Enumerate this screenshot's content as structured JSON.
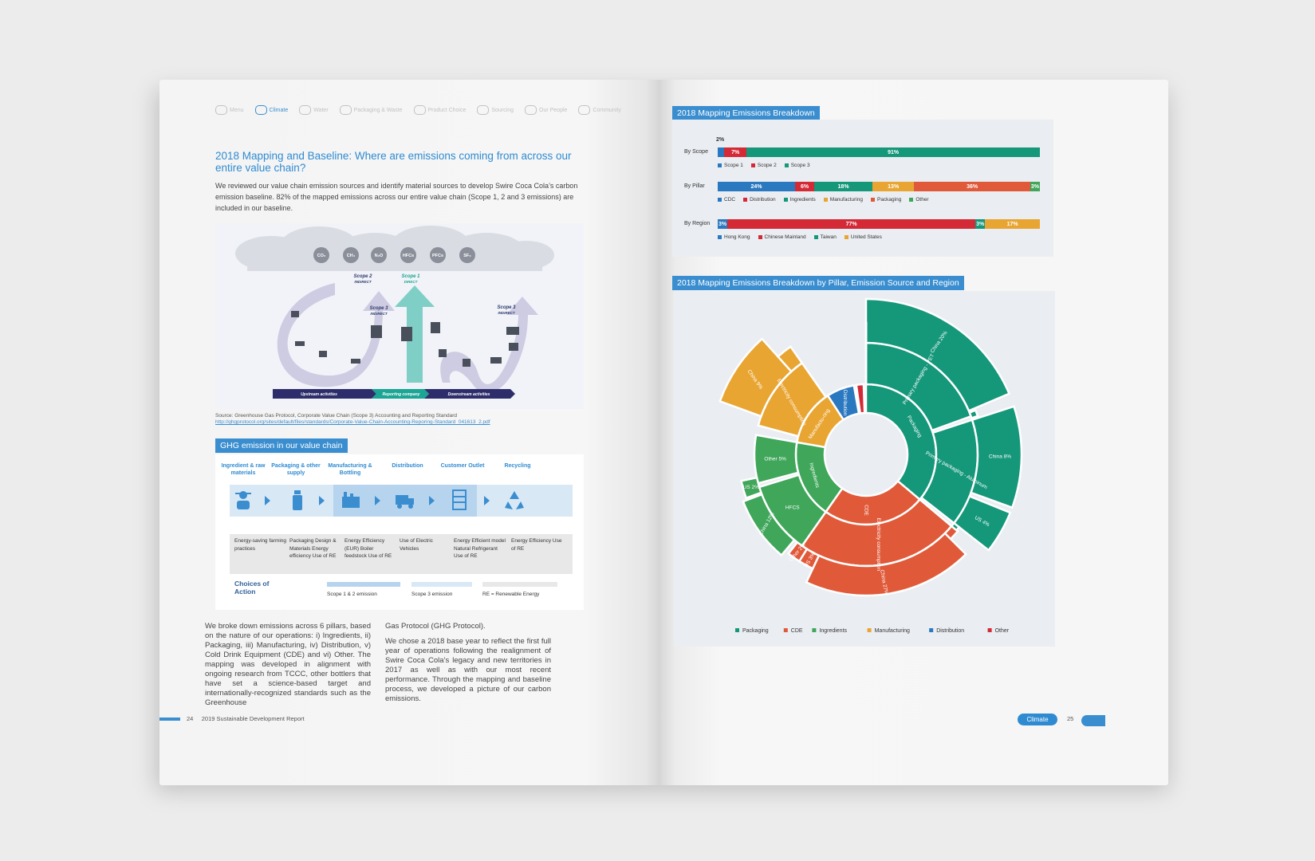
{
  "nav": [
    "Menu",
    "Climate",
    "Water",
    "Packaging & Waste",
    "Product Choice",
    "Sourcing",
    "Our People",
    "Community"
  ],
  "left": {
    "heading": "2018 Mapping and Baseline:  Where are emissions coming from across our entire value chain?",
    "intro": "We reviewed our value chain emission sources and identify material sources to develop Swire Coca Cola’s carbon emission baseline. 82% of the mapped emissions across our entire value chain (Scope 1, 2 and 3 emissions) are included in our baseline.",
    "diagram": {
      "gases": [
        "CO₂",
        "CH₄",
        "N₂O",
        "HFCs",
        "PFCs",
        "SF₆"
      ],
      "scope2": {
        "title": "Scope 2",
        "sub": "INDIRECT"
      },
      "scope1": {
        "title": "Scope 1",
        "sub": "DIRECT"
      },
      "scope3a": {
        "title": "Scope 3",
        "sub": "INDIRECT"
      },
      "scope3b": {
        "title": "Scope 3",
        "sub": "INDIRECT"
      },
      "activities": [
        "Upstream activities",
        "Reporting company",
        "Downstream activities"
      ]
    },
    "source": "Source: Greenhouse Gas Protocol, Corporate Value Chain (Scope 3) Accounting and Reporting Standard",
    "source_link": "http://ghgprotocol.org/sites/default/files/standards/Corporate-Value-Chain-Accounting-Reporing-Standard_041613_2.pdf",
    "ghg_label": "GHG emission in our value chain",
    "stages": [
      {
        "title": "Ingredient & raw materials",
        "action": "Energy-saving farming practices"
      },
      {
        "title": "Packaging & other supply",
        "action": "Packaging Design & Materials Energy efficiency Use of RE"
      },
      {
        "title": "Manufacturing & Bottling",
        "action": "Energy Efficiency (EUR) Boiler feedstock Use of RE"
      },
      {
        "title": "Distribution",
        "action": "Use of Electric Vehicles"
      },
      {
        "title": "Customer Outlet",
        "action": "Energy Efficient model Natural Refrigerant Use of RE"
      },
      {
        "title": "Recycling",
        "action": "Energy Efficiency Use of RE"
      }
    ],
    "choices": "Choices of Action",
    "legend": [
      "Scope 1 & 2 emission",
      "Scope 3 emission",
      "RE = Renewable Energy"
    ],
    "col1": "We broke down emissions across 6 pillars, based on the nature of our operations: i) Ingredients, ii) Packaging, iii) Manufacturing, iv) Distribution, v) Cold Drink Equipment (CDE) and vi) Other. The mapping was developed in alignment with ongoing research from TCCC, other bottlers that have set a science-based target and internationally-recognized standards such as the Greenhouse",
    "col2a": "Gas Protocol (GHG Protocol).",
    "col2b": "We chose a 2018 base year to reflect the first full year of operations following the realignment of Swire Coca Cola’s legacy and new territories in 2017 as well as with our most recent performance. Through the mapping and baseline process, we developed a picture of our carbon emissions.",
    "page_no": "24",
    "footer": "2019 Sustainable Development Report"
  },
  "right": {
    "page_no": "25",
    "pill": "Climate",
    "chart1_title": "2018 Mapping Emissions Breakdown",
    "chart2_title": "2018 Mapping Emissions Breakdown by Pillar, Emission Source and Region"
  },
  "colors": {
    "blue": "#2a78c0",
    "red": "#d32a36",
    "teal": "#15977a",
    "green": "#3fa65a",
    "orange": "#e9a532",
    "coral": "#e05a3a",
    "lightgreen": "#5cb85c"
  },
  "chart_data": [
    {
      "type": "bar",
      "title": "2018 Mapping Emissions Breakdown",
      "rows": [
        {
          "label": "By Scope",
          "segments": [
            {
              "name": "Scope 1",
              "value": 2,
              "color": "#2a78c0",
              "text": "2%"
            },
            {
              "name": "Scope 2",
              "value": 7,
              "color": "#d32a36",
              "text": "7%"
            },
            {
              "name": "Scope 3",
              "value": 91,
              "color": "#15977a",
              "text": "91%"
            }
          ]
        },
        {
          "label": "By Pillar",
          "segments": [
            {
              "name": "CDC",
              "value": 24,
              "color": "#2a78c0",
              "text": "24%"
            },
            {
              "name": "Distribution",
              "value": 6,
              "color": "#d32a36",
              "text": "6%"
            },
            {
              "name": "Ingredients",
              "value": 18,
              "color": "#15977a",
              "text": "18%"
            },
            {
              "name": "Manufacturing",
              "value": 13,
              "color": "#e9a532",
              "text": "13%"
            },
            {
              "name": "Packaging",
              "value": 36,
              "color": "#e05a3a",
              "text": "36%"
            },
            {
              "name": "Other",
              "value": 3,
              "color": "#3fa65a",
              "text": "3%"
            }
          ]
        },
        {
          "label": "By Region",
          "segments": [
            {
              "name": "Hong Kong",
              "value": 3,
              "color": "#2a78c0",
              "text": "3%"
            },
            {
              "name": "Chinese Mainland",
              "value": 77,
              "color": "#d32a36",
              "text": "77%"
            },
            {
              "name": "Taiwan",
              "value": 3,
              "color": "#15977a",
              "text": "3%"
            },
            {
              "name": "United States",
              "value": 17,
              "color": "#e9a532",
              "text": "17%"
            }
          ]
        }
      ]
    },
    {
      "type": "pie",
      "title": "2018 Mapping Emissions Breakdown by Pillar, Emission Source and Region",
      "inner": [
        {
          "name": "Packaging",
          "value": 36,
          "color": "#15977a"
        },
        {
          "name": "CDE",
          "value": 24,
          "color": "#e05a3a"
        },
        {
          "name": "Ingredients",
          "value": 18,
          "color": "#3fa65a"
        },
        {
          "name": "Manufacturing",
          "value": 13,
          "color": "#e9a532"
        },
        {
          "name": "Distribution",
          "value": 6,
          "color": "#2a78c0"
        },
        {
          "name": "Other",
          "value": 3,
          "color": "#d32a36"
        }
      ],
      "labels": [
        "Packaging",
        "CDE",
        "Ingredients",
        "Manufactu-ring",
        "Distribution",
        "Primary packaging - PET",
        "Primary packaging - Aluminum",
        "Electricity consumption",
        "HFCS",
        "Other 5%",
        "Electricity consumption",
        "China 20%",
        "China 8%",
        "US 4%",
        "China 27%",
        "US 3%",
        "Other 2%",
        "China 12%",
        "US 2%",
        "China 9%"
      ],
      "legend": [
        "Packaging",
        "CDE",
        "Ingredients",
        "Manufacturing",
        "Distribution",
        "Other"
      ]
    }
  ]
}
